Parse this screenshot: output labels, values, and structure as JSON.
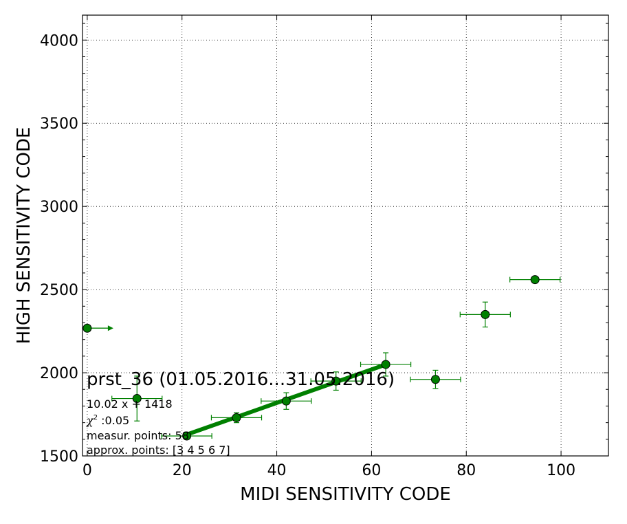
{
  "chart_data": {
    "type": "scatter",
    "xlabel": "MIDI SENSITIVITY CODE",
    "ylabel": "HIGH SENSITIVITY CODE",
    "xlim": [
      -1,
      110
    ],
    "ylim": [
      1500,
      4150
    ],
    "xticks": [
      0,
      20,
      40,
      60,
      80,
      100
    ],
    "yticks": [
      1500,
      2000,
      2500,
      3000,
      3500,
      4000
    ],
    "grid": true,
    "grid_style": "dotted",
    "marker_color": "#008000",
    "points": [
      {
        "x": 0,
        "y": 2268,
        "xerr": 0,
        "yerr": 0,
        "lower_limit_arrow": true
      },
      {
        "x": 10.5,
        "y": 1845,
        "xerr": 5.3,
        "yerr": 135
      },
      {
        "x": 21,
        "y": 1620,
        "xerr": 5.3,
        "yerr": 0
      },
      {
        "x": 31.5,
        "y": 1730,
        "xerr": 5.3,
        "yerr": 30
      },
      {
        "x": 42,
        "y": 1830,
        "xerr": 5.3,
        "yerr": 50
      },
      {
        "x": 52.5,
        "y": 1950,
        "xerr": 5.3,
        "yerr": 55
      },
      {
        "x": 63,
        "y": 2050,
        "xerr": 5.3,
        "yerr": 70
      },
      {
        "x": 73.5,
        "y": 1960,
        "xerr": 5.3,
        "yerr": 55
      },
      {
        "x": 84,
        "y": 2350,
        "xerr": 5.3,
        "yerr": 75
      },
      {
        "x": 94.5,
        "y": 2560,
        "xerr": 5.3,
        "yerr": 0
      }
    ],
    "fit": {
      "slope": 10.02,
      "intercept": 1418,
      "x_range": [
        21,
        63
      ],
      "color": "#008000"
    },
    "annotations": {
      "title": "prst_36 (01.05.2016...31.05.2016)",
      "equation": "10.02 x + 1418",
      "chi_symbol": "χ",
      "chi_exponent": "2",
      "chi_value": " :0.05",
      "measur_points": "measur. points: 58",
      "approx_points": "approx. points: [3 4 5 6 7]"
    }
  }
}
